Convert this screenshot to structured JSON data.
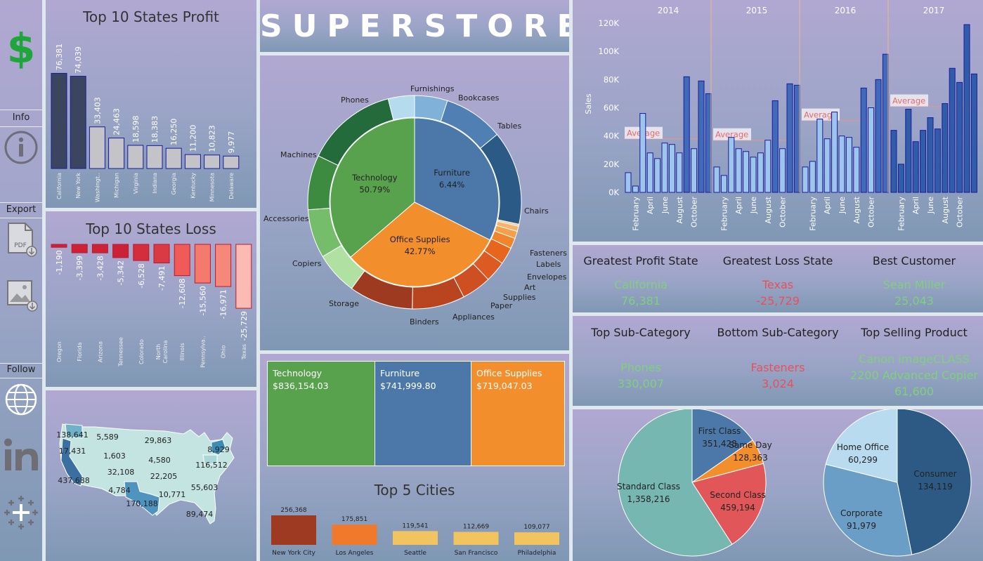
{
  "title": "SUPERSTORE",
  "sidebar": {
    "logo_icon": "dollar-icon",
    "info_label": "Info",
    "export_label": "Export",
    "follow_label": "Follow"
  },
  "colors": {
    "technology": "#58a24d",
    "furniture": "#4b78a8",
    "office_supplies": "#f28e2c",
    "positive": "#7fd07c",
    "negative": "#e8505b"
  },
  "kpis": {
    "greatest_profit_state": {
      "label": "Greatest Profit State",
      "name": "California",
      "value": "76,381"
    },
    "greatest_loss_state": {
      "label": "Greatest Loss State",
      "name": "Texas",
      "value": "-25,729"
    },
    "best_customer": {
      "label": "Best Customer",
      "name": "Sean Miller",
      "value": "25,043"
    },
    "top_sub_category": {
      "label": "Top Sub-Category",
      "name": "Phones",
      "value": "330,007"
    },
    "bottom_sub_category": {
      "label": "Bottom Sub-Category",
      "name": "Fasteners",
      "value": "3,024"
    },
    "top_selling_product": {
      "label": "Top Selling Product",
      "name_line1": "Canon imageCLASS",
      "name_line2": "2200 Advanced Copier",
      "value": "61,600"
    }
  },
  "treemap": [
    {
      "label": "Technology",
      "value": "$836,154.03"
    },
    {
      "label": "Furniture",
      "value": "$741,999.80"
    },
    {
      "label": "Office Supplies",
      "value": "$719,047.03"
    }
  ],
  "map_labels": [
    "138,641",
    "5,589",
    "29,863",
    "17,431",
    "1,603",
    "8,929",
    "4,580",
    "116,512",
    "32,108",
    "22,205",
    "437,688",
    "55,603",
    "4,784",
    "10,771",
    "170,188",
    "89,474"
  ],
  "chart_data": [
    {
      "id": "profit",
      "type": "bar",
      "title": "Top 10 States Profit",
      "categories": [
        "California",
        "New York",
        "Washingt..",
        "Michigan",
        "Virginia",
        "Indiana",
        "Georgia",
        "Kentucky",
        "Minnesota",
        "Delaware"
      ],
      "values": [
        76381,
        74039,
        33403,
        24463,
        18598,
        18383,
        16250,
        11200,
        10823,
        9977
      ],
      "labels": [
        "76,381",
        "74,039",
        "33,403",
        "24,463",
        "18,598",
        "18,383",
        "16,250",
        "11,200",
        "10,823",
        "9,977"
      ],
      "colors": [
        "#3c4560",
        "#3c4560",
        "#c3c3c8",
        "#c3c3c8",
        "#c3c3c8",
        "#c3c3c8",
        "#c3c3c8",
        "#c3c3c8",
        "#c3c3c8",
        "#c3c3c8"
      ]
    },
    {
      "id": "loss",
      "type": "bar",
      "title": "Top 10 States Loss",
      "categories": [
        "Oregon",
        "Florida",
        "Arizona",
        "Tennessee",
        "Colorado",
        "North Carolina",
        "Illinois",
        "Pennsylva..",
        "Ohio",
        "Texas"
      ],
      "values": [
        -1190,
        -3399,
        -3428,
        -5342,
        -6528,
        -7491,
        -12608,
        -15560,
        -16971,
        -25729
      ],
      "labels": [
        "-1,190",
        "-3,399",
        "-3,428",
        "-5,342",
        "-6,528",
        "-7,491",
        "-12,608",
        "-15,560",
        "-16,971",
        "-25,729"
      ],
      "colors": [
        "#cc2236",
        "#cc2236",
        "#cc2236",
        "#cc2236",
        "#d42e3c",
        "#d93a44",
        "#ef5b57",
        "#f47a6e",
        "#f58878",
        "#fbbab3"
      ]
    },
    {
      "id": "sunburst",
      "type": "pie",
      "inner": [
        {
          "label": "Furniture",
          "pct_label": "6.44%",
          "share": 32.4,
          "color": "#4b78a8"
        },
        {
          "label": "Office Supplies",
          "pct_label": "42.77%",
          "share": 31.3,
          "color": "#f28e2c"
        },
        {
          "label": "Technology",
          "pct_label": "50.79%",
          "share": 36.3,
          "color": "#58a24d"
        }
      ],
      "outer": [
        {
          "label": "Bookcases",
          "share": 5.0,
          "color": "#7fb1d9"
        },
        {
          "label": "Tables",
          "share": 9.1,
          "color": "#4f7fb3"
        },
        {
          "label": "Chairs",
          "share": 14.3,
          "color": "#2b5a87"
        },
        {
          "label": "Fasteners",
          "share": 0.3,
          "color": "#fbc88a"
        },
        {
          "label": "Labels",
          "share": 0.8,
          "color": "#f8b26a"
        },
        {
          "label": "Envelopes",
          "share": 1.1,
          "color": "#f4a04a"
        },
        {
          "label": "Art",
          "share": 1.6,
          "color": "#f1852d"
        },
        {
          "label": "Supplies",
          "share": 2.6,
          "color": "#e8651d"
        },
        {
          "label": "Paper",
          "share": 3.2,
          "color": "#dd5a22"
        },
        {
          "label": "Appliances",
          "share": 4.5,
          "color": "#cd4f22"
        },
        {
          "label": "Binders",
          "share": 8.0,
          "color": "#b8451f"
        },
        {
          "label": "Storage",
          "share": 9.7,
          "color": "#9e3a1f"
        },
        {
          "label": "Copiers",
          "share": 6.5,
          "color": "#b0e0a2"
        },
        {
          "label": "Accessories",
          "share": 7.4,
          "color": "#75bd6a"
        },
        {
          "label": "Machines",
          "share": 8.3,
          "color": "#3d8a41"
        },
        {
          "label": "Phones",
          "share": 13.9,
          "color": "#236b3a"
        },
        {
          "label": "Furnishings",
          "share": 4.0,
          "color": "#b5dcee"
        }
      ]
    },
    {
      "id": "monthly",
      "type": "bar",
      "ylabel": "Sales",
      "yticks": [
        "0K",
        "20K",
        "40K",
        "60K",
        "80K",
        "100K",
        "120K"
      ],
      "ylim": [
        0,
        120000
      ],
      "years": [
        "2014",
        "2015",
        "2016",
        "2017"
      ],
      "month_ticks": [
        "February",
        "April",
        "June",
        "August",
        "October"
      ],
      "average_label": "Average",
      "averages": [
        38000,
        37000,
        51000,
        61000
      ],
      "values": [
        [
          14000,
          4500,
          56000,
          28000,
          24000,
          35000,
          34000,
          28000,
          82000,
          31000,
          79000,
          70000
        ],
        [
          18000,
          12000,
          39000,
          31000,
          29000,
          25000,
          28000,
          37000,
          65000,
          31000,
          77000,
          76000
        ],
        [
          18000,
          22000,
          52000,
          38000,
          57000,
          40000,
          39000,
          32000,
          74000,
          60000,
          80000,
          98000
        ],
        [
          44000,
          20000,
          59000,
          36000,
          44000,
          53000,
          45000,
          63000,
          88000,
          78000,
          119000,
          84000
        ]
      ]
    },
    {
      "id": "cities",
      "type": "bar",
      "title": "Top 5 Cities",
      "categories": [
        "New York City",
        "Los Angeles",
        "Seattle",
        "San Francisco",
        "Philadelphia"
      ],
      "values": [
        256368,
        175851,
        119541,
        112669,
        109077
      ],
      "labels": [
        "256,368",
        "175,851",
        "119,541",
        "112,669",
        "109,077"
      ],
      "colors": [
        "#9e3a22",
        "#f0792b",
        "#f2c45f",
        "#f2c45f",
        "#f2c45f"
      ]
    },
    {
      "id": "shipmode",
      "type": "pie",
      "slices": [
        {
          "label": "First Class",
          "value_label": "351,428",
          "value": 351428,
          "color": "#4b78a8"
        },
        {
          "label": "Same Day",
          "value_label": "128,363",
          "value": 128363,
          "color": "#f28e2c"
        },
        {
          "label": "Second Class",
          "value_label": "459,194",
          "value": 459194,
          "color": "#e15759"
        },
        {
          "label": "Standard Class",
          "value_label": "1,358,216",
          "value": 1358216,
          "color": "#76b7b2"
        }
      ]
    },
    {
      "id": "segment",
      "type": "pie",
      "slices": [
        {
          "label": "Consumer",
          "value_label": "134,119",
          "value": 134119,
          "color": "#2d5a85"
        },
        {
          "label": "Corporate",
          "value_label": "91,979",
          "value": 91979,
          "color": "#6b9ec7"
        },
        {
          "label": "Home Office",
          "value_label": "60,299",
          "value": 60299,
          "color": "#b9dbef"
        }
      ]
    }
  ]
}
